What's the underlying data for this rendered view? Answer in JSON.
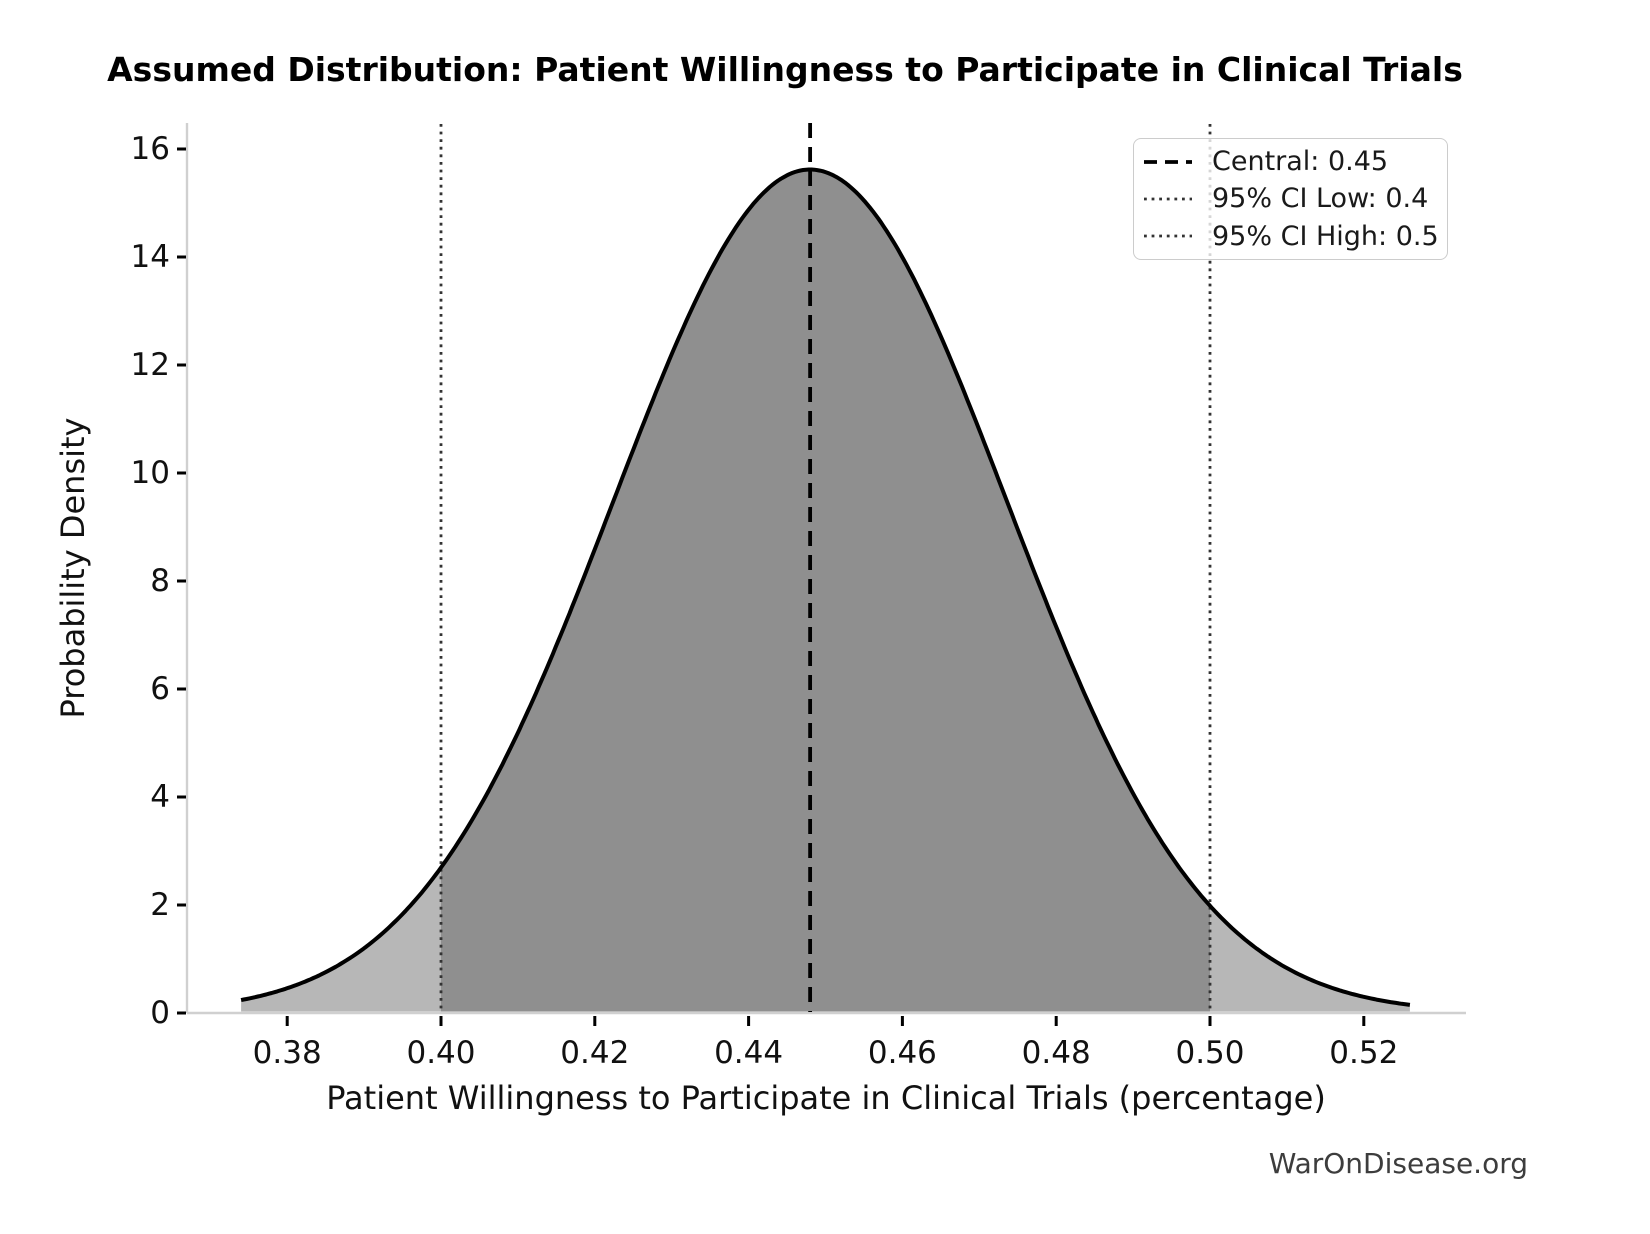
{
  "title": "Assumed Distribution: Patient Willingness to Participate in Clinical Trials",
  "watermark": "WarOnDisease.org",
  "axes": {
    "x_label": "Patient Willingness to Participate in Clinical Trials (percentage)",
    "y_label": "Probability Density",
    "x_ticks": [
      {
        "value": 0.38,
        "label": "0.38"
      },
      {
        "value": 0.4,
        "label": "0.40"
      },
      {
        "value": 0.42,
        "label": "0.42"
      },
      {
        "value": 0.44,
        "label": "0.44"
      },
      {
        "value": 0.46,
        "label": "0.46"
      },
      {
        "value": 0.48,
        "label": "0.48"
      },
      {
        "value": 0.5,
        "label": "0.50"
      },
      {
        "value": 0.52,
        "label": "0.52"
      }
    ],
    "y_ticks": [
      {
        "value": 0,
        "label": "0"
      },
      {
        "value": 2,
        "label": "2"
      },
      {
        "value": 4,
        "label": "4"
      },
      {
        "value": 6,
        "label": "6"
      },
      {
        "value": 8,
        "label": "8"
      },
      {
        "value": 10,
        "label": "10"
      },
      {
        "value": 12,
        "label": "12"
      },
      {
        "value": 14,
        "label": "14"
      },
      {
        "value": 16,
        "label": "16"
      }
    ]
  },
  "legend": {
    "items": [
      {
        "label": "Central: 0.45",
        "style": "dashed",
        "color": "#000000"
      },
      {
        "label": "95% CI Low: 0.4",
        "style": "dotted",
        "color": "#333333"
      },
      {
        "label": "95% CI High: 0.5",
        "style": "dotted",
        "color": "#333333"
      }
    ]
  },
  "chart_data": {
    "type": "area",
    "title": "Assumed Distribution: Patient Willingness to Participate in Clinical Trials",
    "xlabel": "Patient Willingness to Participate in Clinical Trials (percentage)",
    "ylabel": "Probability Density",
    "xlim": [
      0.367,
      0.533
    ],
    "ylim": [
      0,
      16.48
    ],
    "grid": false,
    "legend_position": "upper right",
    "curve": {
      "shape": "bell",
      "mode": 0.448,
      "sigma": 0.0256,
      "peak_density": 15.62,
      "x_start": 0.374,
      "x_end": 0.526
    },
    "curve_points": [
      [
        0.374,
        0.24
      ],
      [
        0.38,
        0.46
      ],
      [
        0.39,
        1.2
      ],
      [
        0.4,
        2.7
      ],
      [
        0.41,
        5.2
      ],
      [
        0.42,
        8.6
      ],
      [
        0.43,
        12.2
      ],
      [
        0.44,
        14.8
      ],
      [
        0.448,
        15.6
      ],
      [
        0.46,
        14.0
      ],
      [
        0.47,
        10.8
      ],
      [
        0.48,
        7.1
      ],
      [
        0.49,
        4.1
      ],
      [
        0.5,
        2.0
      ],
      [
        0.51,
        0.83
      ],
      [
        0.52,
        0.3
      ],
      [
        0.526,
        0.15
      ]
    ],
    "central_line": {
      "x": 0.448,
      "label": "Central: 0.45",
      "style": "dashed"
    },
    "ci_low_line": {
      "x": 0.4,
      "label": "95% CI Low: 0.4",
      "style": "dotted"
    },
    "ci_high_line": {
      "x": 0.5,
      "label": "95% CI High: 0.5",
      "style": "dotted"
    },
    "shaded_ci_band": [
      0.4,
      0.5
    ],
    "colors": {
      "curve": "#000000",
      "fill_tail": "#b7b7b7",
      "fill_ci_band": "#8f8f8f",
      "central_line": "#000000",
      "ci_lines": "#333333",
      "spine": "#d0d0d0",
      "tick": "#000000",
      "text": "#111111",
      "watermark": "#3d3d3d"
    }
  }
}
